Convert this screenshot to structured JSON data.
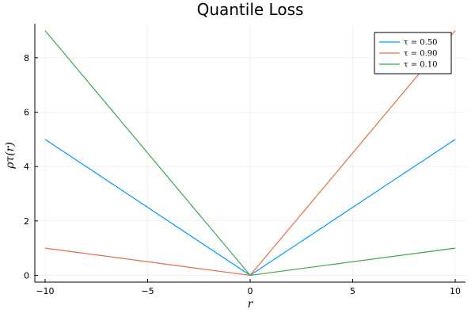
{
  "chart_data": {
    "type": "line",
    "title": "Quantile Loss",
    "xlabel": "r",
    "ylabel": "ρτ(r)",
    "xlim": [
      -10.5,
      10.5
    ],
    "ylim": [
      -0.25,
      9.25
    ],
    "xticks": [
      -10,
      -5,
      0,
      5,
      10
    ],
    "xtick_labels": [
      "−10",
      "−5",
      "0",
      "5",
      "10"
    ],
    "yticks": [
      0,
      2,
      4,
      6,
      8
    ],
    "ytick_labels": [
      "0",
      "2",
      "4",
      "6",
      "8"
    ],
    "grid": true,
    "legend_position": "top-right",
    "series": [
      {
        "name": "τ = 0.50",
        "color": "#009af9",
        "x": [
          -10,
          0,
          10
        ],
        "y": [
          5,
          0,
          5
        ]
      },
      {
        "name": "τ = 0.90",
        "color": "#e26f46",
        "x": [
          -10,
          0,
          10
        ],
        "y": [
          1,
          0,
          9
        ]
      },
      {
        "name": "τ = 0.10",
        "color": "#3da44d",
        "x": [
          -10,
          0,
          10
        ],
        "y": [
          9,
          0,
          1
        ]
      }
    ]
  }
}
